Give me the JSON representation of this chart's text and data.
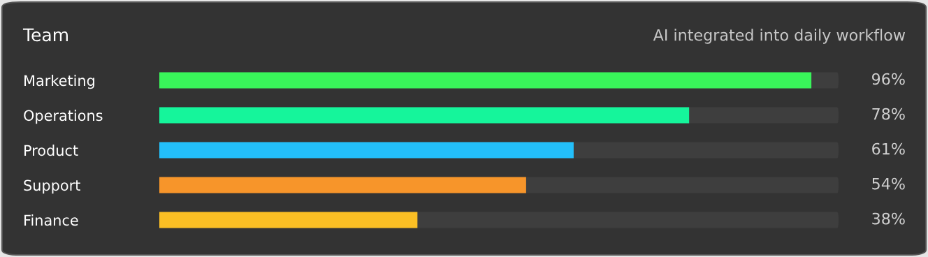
{
  "chart_data": {
    "type": "bar",
    "orientation": "horizontal",
    "title": "Team",
    "subtitle": "AI integrated into daily workflow",
    "categories": [
      "Marketing",
      "Operations",
      "Product",
      "Support",
      "Finance"
    ],
    "values": [
      96,
      78,
      61,
      54,
      38
    ],
    "colors": [
      "#39f55a",
      "#15f59b",
      "#23bffa",
      "#f7952a",
      "#fbbf24"
    ],
    "value_labels": [
      "96%",
      "78%",
      "61%",
      "54%",
      "38%"
    ],
    "xlim": [
      0,
      100
    ],
    "tick_labels": "y",
    "grid": false
  }
}
